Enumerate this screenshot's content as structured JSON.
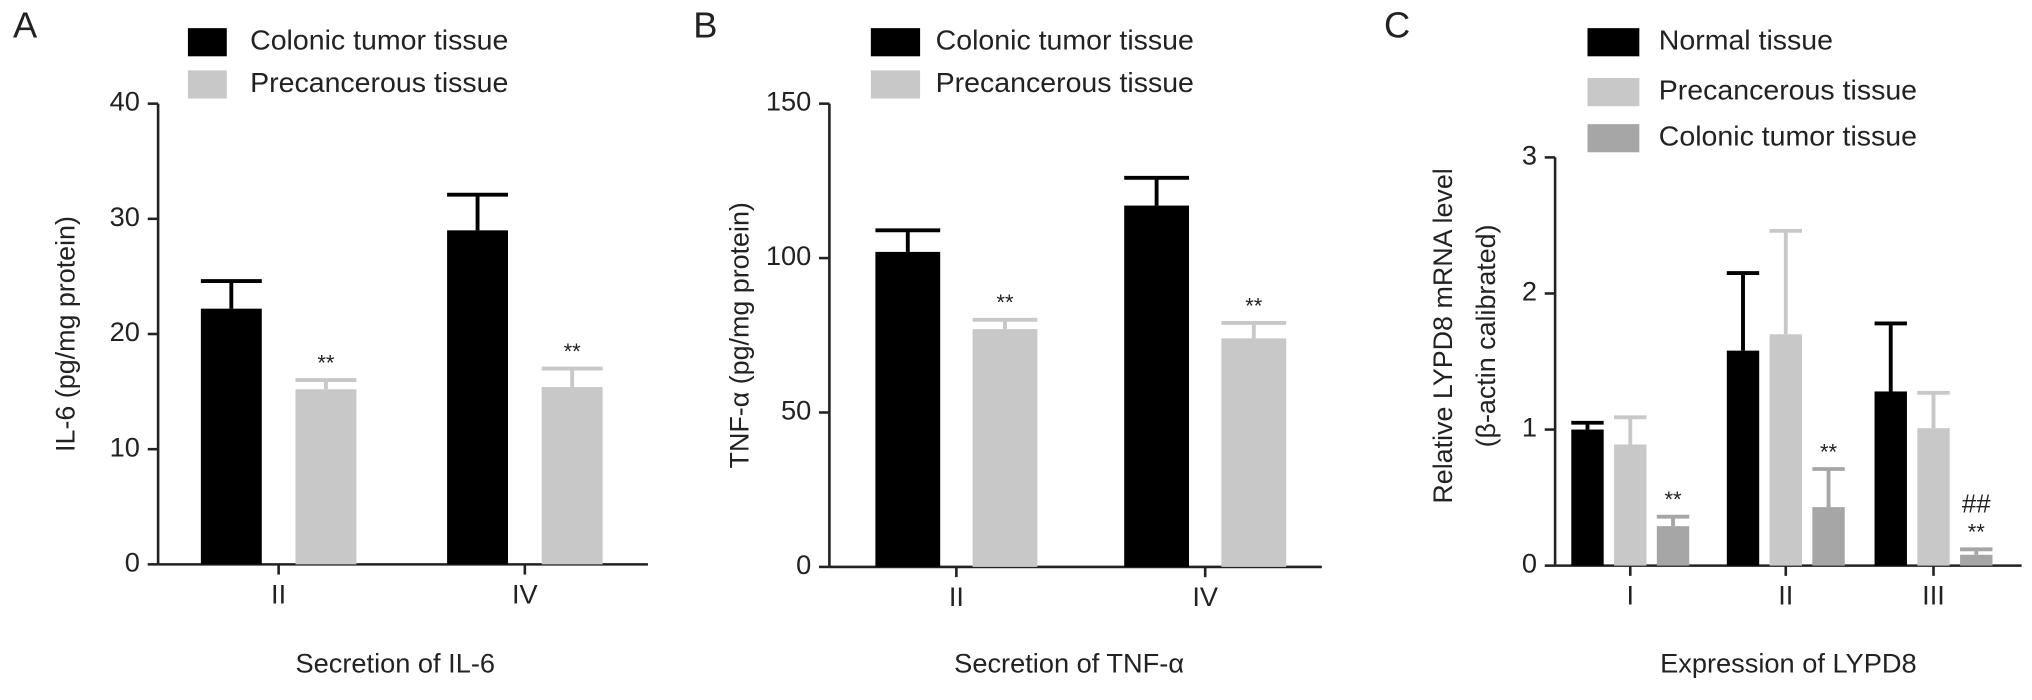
{
  "chart_data": [
    {
      "type": "bar",
      "panel": "A",
      "ylabel": "IL-6 (pg/mg protein)",
      "xlabel": "Secretion of IL-6",
      "categories": [
        "II",
        "IV"
      ],
      "ylim": [
        0,
        40
      ],
      "yticks": [
        0,
        10,
        20,
        30,
        40
      ],
      "series": [
        {
          "name": "Colonic tumor tissue",
          "color": "#000000",
          "values": [
            22.2,
            29.0
          ],
          "errors": [
            2.4,
            3.1
          ]
        },
        {
          "name": "Precancerous tissue",
          "color": "#c8c8c8",
          "values": [
            15.2,
            15.4
          ],
          "errors": [
            0.8,
            1.6
          ],
          "annotations": [
            [
              "**"
            ],
            [
              "**"
            ]
          ]
        }
      ]
    },
    {
      "type": "bar",
      "panel": "B",
      "ylabel": "TNF-α (pg/mg protein)",
      "xlabel": "Secretion of TNF-α",
      "categories": [
        "II",
        "IV"
      ],
      "ylim": [
        0,
        150
      ],
      "yticks": [
        0,
        50,
        100,
        150
      ],
      "series": [
        {
          "name": "Colonic tumor tissue",
          "color": "#000000",
          "values": [
            102,
            117
          ],
          "errors": [
            7,
            9
          ]
        },
        {
          "name": "Precancerous tissue",
          "color": "#c8c8c8",
          "values": [
            77,
            74
          ],
          "errors": [
            3,
            5
          ],
          "annotations": [
            [
              "**"
            ],
            [
              "**"
            ]
          ]
        }
      ]
    },
    {
      "type": "bar",
      "panel": "C",
      "ylabel": [
        "Relative LYPD8 mRNA level",
        "(β-actin calibrated)"
      ],
      "xlabel": "Expression of LYPD8",
      "categories": [
        "I",
        "II",
        "III"
      ],
      "ylim": [
        0,
        3
      ],
      "yticks": [
        0,
        1,
        2,
        3
      ],
      "series": [
        {
          "name": "Normal tissue",
          "color": "#000000",
          "values": [
            1.0,
            1.58,
            1.28
          ],
          "errors": [
            0.05,
            0.57,
            0.5
          ]
        },
        {
          "name": "Precancerous tissue",
          "color": "#c8c8c8",
          "values": [
            0.89,
            1.7,
            1.01
          ],
          "errors": [
            0.2,
            0.76,
            0.26
          ]
        },
        {
          "name": "Colonic tumor tissue",
          "color": "#a6a6a6",
          "values": [
            0.29,
            0.43,
            0.08
          ],
          "errors": [
            0.07,
            0.28,
            0.04
          ],
          "annotations": [
            [
              "**"
            ],
            [
              "**"
            ],
            [
              "**",
              "##"
            ]
          ]
        }
      ]
    }
  ]
}
